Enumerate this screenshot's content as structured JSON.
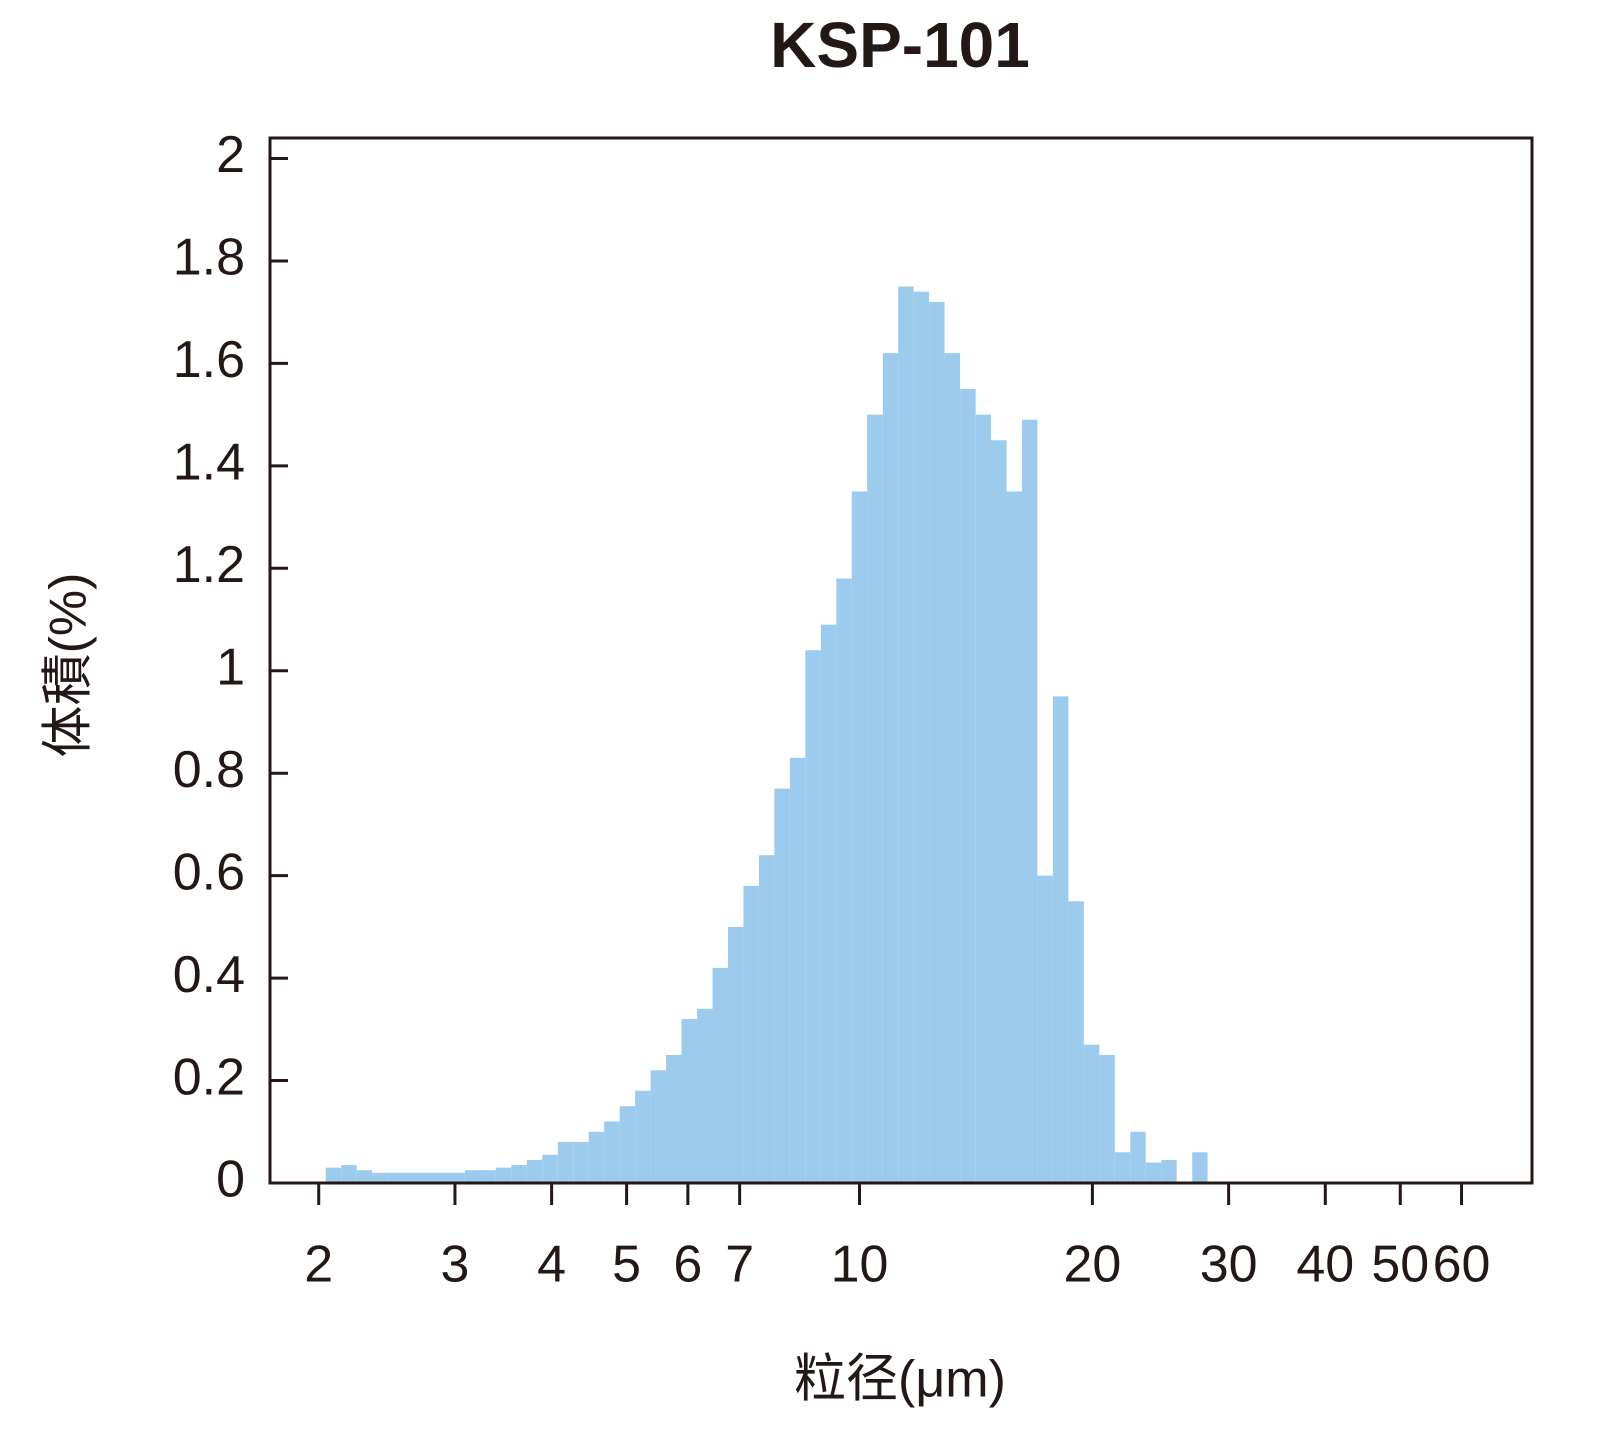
{
  "chart_data": {
    "type": "histogram",
    "title": "KSP-101",
    "x_label": "粒径(μm)",
    "y_label": "体積(%)",
    "color": "#9dcbee",
    "xscale": "log",
    "bins": [
      2.042,
      2.138,
      2.239,
      2.344,
      2.455,
      2.57,
      2.692,
      2.818,
      2.951,
      3.09,
      3.236,
      3.388,
      3.548,
      3.715,
      3.89,
      4.074,
      4.266,
      4.467,
      4.677,
      4.898,
      5.129,
      5.37,
      5.623,
      5.888,
      6.166,
      6.457,
      6.761,
      7.079,
      7.413,
      7.762,
      8.128,
      8.511,
      8.913,
      9.333,
      9.772,
      10.23,
      10.72,
      11.22,
      11.75,
      12.3,
      12.88,
      13.49,
      14.13,
      14.79,
      15.49,
      16.22,
      16.98,
      17.78,
      18.62,
      19.5,
      20.42,
      21.38,
      22.39,
      23.44,
      24.55,
      25.7,
      26.92,
      28.18
    ],
    "values": [
      0.03,
      0.035,
      0.025,
      0.02,
      0.02,
      0.02,
      0.02,
      0.02,
      0.02,
      0.025,
      0.025,
      0.03,
      0.035,
      0.045,
      0.055,
      0.08,
      0.08,
      0.1,
      0.12,
      0.15,
      0.18,
      0.22,
      0.25,
      0.32,
      0.34,
      0.42,
      0.5,
      0.58,
      0.64,
      0.77,
      0.83,
      1.04,
      1.09,
      1.18,
      1.35,
      1.5,
      1.62,
      1.75,
      1.74,
      1.72,
      1.62,
      1.55,
      1.5,
      1.45,
      1.35,
      1.49,
      0.6,
      0.95,
      0.55,
      0.27,
      0.25,
      0.06,
      0.1,
      0.04,
      0.045,
      0,
      0.06
    ],
    "xlim": [
      1.73,
      74
    ],
    "xticks": [
      2,
      3,
      4,
      5,
      6,
      7,
      10,
      20,
      30,
      40,
      50,
      60
    ],
    "ylim": [
      0,
      2.04
    ],
    "yticks": [
      0,
      0.2,
      0.4,
      0.6,
      0.8,
      1,
      1.2,
      1.4,
      1.6,
      1.8,
      2
    ]
  }
}
